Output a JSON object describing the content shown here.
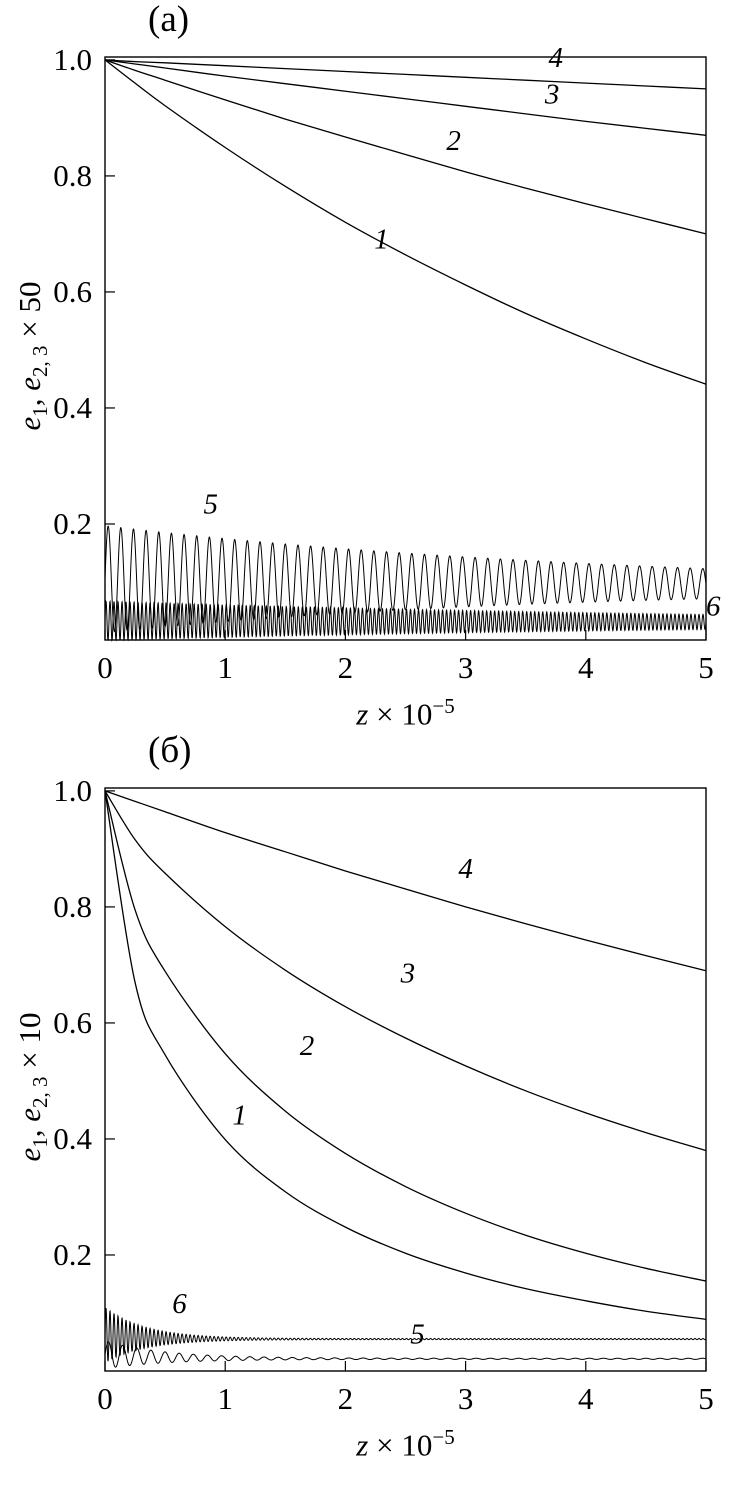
{
  "figure": {
    "background": "#ffffff",
    "line_color": "#000000",
    "panel_count": 2
  },
  "chart_data": [
    {
      "type": "line",
      "panel_tag": "(a)",
      "title": "",
      "xlabel_parts": {
        "variable": "z",
        "factor": " × 10",
        "exponent": "−5"
      },
      "ylabel_parts": {
        "var1": "e",
        "sub1": "1",
        "separator": ", ",
        "var2": "e",
        "sub2": "2, 3",
        "factor": " × 50"
      },
      "line_color": "#000000",
      "xlim": [
        0,
        5
      ],
      "ylim": [
        0,
        1.005
      ],
      "grid": false,
      "xticks": [
        0,
        1,
        2,
        3,
        4,
        5
      ],
      "xtick_labels": [
        "0",
        "1",
        "2",
        "3",
        "4",
        "5"
      ],
      "yticks": [
        0.2,
        0.4,
        0.6,
        0.8,
        1.0
      ],
      "ytick_labels": [
        "0.2",
        "0.4",
        "0.6",
        "0.8",
        "1.0"
      ],
      "x": [
        0,
        0.25,
        0.5,
        1,
        1.5,
        2,
        2.5,
        3,
        3.5,
        4,
        4.5,
        5
      ],
      "series": [
        {
          "name": "1",
          "style": "smooth",
          "values": [
            1,
            0.96,
            0.921,
            0.849,
            0.782,
            0.72,
            0.664,
            0.612,
            0.563,
            0.519,
            0.478,
            0.441
          ],
          "label_pos": [
            2.3,
            0.675
          ]
        },
        {
          "name": "2",
          "style": "smooth",
          "values": [
            1,
            0.982,
            0.965,
            0.931,
            0.898,
            0.867,
            0.837,
            0.807,
            0.779,
            0.752,
            0.726,
            0.7
          ],
          "label_pos": [
            2.9,
            0.845
          ]
        },
        {
          "name": "3",
          "style": "smooth",
          "values": [
            1,
            0.993,
            0.986,
            0.972,
            0.959,
            0.946,
            0.933,
            0.92,
            0.907,
            0.894,
            0.882,
            0.87
          ],
          "label_pos": [
            3.72,
            0.925
          ]
        },
        {
          "name": "4",
          "style": "smooth",
          "values": [
            1,
            0.997,
            0.995,
            0.99,
            0.985,
            0.98,
            0.975,
            0.97,
            0.965,
            0.96,
            0.955,
            0.95
          ],
          "label_pos": [
            3.75,
            0.988
          ]
        },
        {
          "name": "5",
          "style": "oscillation",
          "mid": [
            0.105,
            0.097
          ],
          "amp": [
            0.092,
            0.026
          ],
          "freq": 9.5,
          "label_pos": [
            0.88,
            0.218
          ]
        },
        {
          "name": "6",
          "style": "oscillation",
          "mid": [
            0.033,
            0.031
          ],
          "amp": [
            0.034,
            0.013
          ],
          "freq": 30,
          "label_pos": [
            5.06,
            0.042
          ]
        }
      ]
    },
    {
      "type": "line",
      "panel_tag": "(б)",
      "title": "",
      "xlabel_parts": {
        "variable": "z",
        "factor": " × 10",
        "exponent": "−5"
      },
      "ylabel_parts": {
        "var1": "e",
        "sub1": "1",
        "separator": ", ",
        "var2": "e",
        "sub2": "2, 3",
        "factor": " × 10"
      },
      "line_color": "#000000",
      "xlim": [
        0,
        5
      ],
      "ylim": [
        0,
        1.005
      ],
      "grid": false,
      "xticks": [
        0,
        1,
        2,
        3,
        4,
        5
      ],
      "xtick_labels": [
        "0",
        "1",
        "2",
        "3",
        "4",
        "5"
      ],
      "yticks": [
        0.2,
        0.4,
        0.6,
        0.8,
        1.0
      ],
      "ytick_labels": [
        "0.2",
        "0.4",
        "0.6",
        "0.8",
        "1.0"
      ],
      "x": [
        0,
        0.25,
        0.5,
        1,
        1.5,
        2,
        2.5,
        3,
        3.5,
        4,
        4.5,
        5
      ],
      "series": [
        {
          "name": "1",
          "style": "smooth",
          "values": [
            1,
            0.67,
            0.545,
            0.399,
            0.309,
            0.248,
            0.203,
            0.169,
            0.142,
            0.121,
            0.103,
            0.089
          ],
          "label_pos": [
            1.12,
            0.425
          ]
        },
        {
          "name": "2",
          "style": "smooth",
          "values": [
            1,
            0.795,
            0.689,
            0.547,
            0.448,
            0.375,
            0.318,
            0.272,
            0.234,
            0.203,
            0.177,
            0.155
          ],
          "label_pos": [
            1.68,
            0.545
          ]
        },
        {
          "name": "3",
          "style": "smooth",
          "values": [
            1,
            0.916,
            0.858,
            0.766,
            0.691,
            0.628,
            0.574,
            0.526,
            0.483,
            0.445,
            0.411,
            0.38
          ],
          "label_pos": [
            2.52,
            0.67
          ]
        },
        {
          "name": "4",
          "style": "smooth",
          "values": [
            1,
            0.982,
            0.964,
            0.928,
            0.895,
            0.862,
            0.831,
            0.8,
            0.771,
            0.743,
            0.716,
            0.69
          ],
          "label_pos": [
            3.0,
            0.85
          ]
        },
        {
          "name": "6",
          "style": "oscillation",
          "mid": [
            0.062,
            0.055
          ],
          "amp": [
            0.048,
            0.001
          ],
          "freq": 30,
          "decay": 3,
          "label_pos": [
            0.62,
            0.1
          ]
        },
        {
          "name": "5",
          "style": "oscillation",
          "mid": [
            0.028,
            0.021
          ],
          "amp": [
            0.024,
            0.001
          ],
          "freq": 8.5,
          "decay": 2,
          "label_pos": [
            2.6,
            0.047
          ]
        }
      ]
    }
  ]
}
